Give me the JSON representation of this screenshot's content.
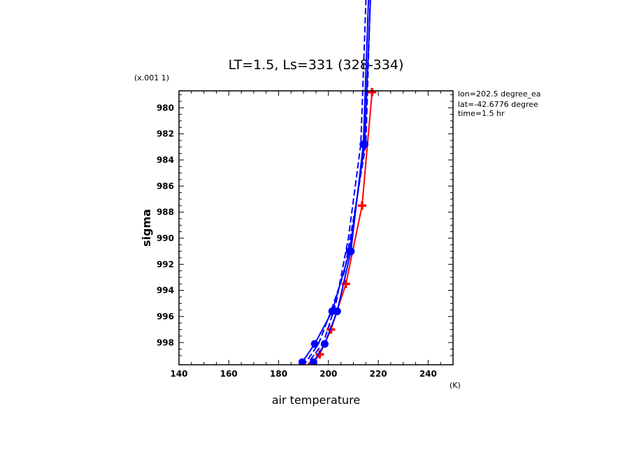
{
  "chart_data": {
    "type": "line",
    "title": "LT=1.5, Ls=331 (328-334)",
    "scale_label": "(x.001 1)",
    "xlabel": "air temperature",
    "xunit": "(K)",
    "ylabel": "sigma",
    "xlim": [
      140,
      250
    ],
    "ylim": [
      999.7,
      978.7
    ],
    "x_ticks": [
      140,
      160,
      180,
      200,
      220,
      240
    ],
    "y_ticks": [
      980,
      982,
      984,
      986,
      988,
      990,
      992,
      994,
      996,
      998
    ],
    "y_tick_labels": [
      "980",
      "982",
      "984",
      "986",
      "988",
      "990",
      "992",
      "994",
      "996",
      "998"
    ],
    "info": [
      "lon=202.5 degree_ea",
      "lat=-42.6776 degree",
      "time=1.5 hr"
    ],
    "colors": {
      "red": "#ff0000",
      "blue": "#0000ff"
    },
    "series": [
      {
        "color": "#ff0000",
        "marker": "plus",
        "style": "solid",
        "points": [
          [
            217.5,
            978.8
          ],
          [
            213.5,
            987.5
          ],
          [
            207.0,
            993.5
          ],
          [
            201.0,
            997.0
          ],
          [
            196.5,
            998.9
          ],
          [
            193.5,
            999.6
          ]
        ]
      },
      {
        "color": "#0000ff",
        "marker": "circle",
        "style": "solid",
        "points": [
          [
            218.5,
            964.0
          ],
          [
            214.5,
            982.8
          ],
          [
            208.5,
            991.0
          ],
          [
            201.5,
            995.6
          ],
          [
            194.5,
            998.1
          ],
          [
            189.5,
            999.5
          ]
        ]
      },
      {
        "color": "#0000ff",
        "marker": "circle",
        "style": "solid",
        "points": [
          [
            217.5,
            964.0
          ],
          [
            214.0,
            982.8
          ],
          [
            209.0,
            991.0
          ],
          [
            203.5,
            995.6
          ],
          [
            198.5,
            998.1
          ],
          [
            194.0,
            999.5
          ]
        ]
      },
      {
        "color": "#0000ff",
        "marker": "none",
        "style": "dashed",
        "points": [
          [
            218.0,
            964.0
          ],
          [
            215.0,
            982.8
          ],
          [
            210.5,
            988.0
          ],
          [
            206.5,
            992.5
          ],
          [
            201.0,
            995.6
          ],
          [
            196.0,
            998.1
          ],
          [
            191.0,
            999.5
          ]
        ]
      },
      {
        "color": "#0000ff",
        "marker": "none",
        "style": "dashed",
        "points": [
          [
            216.5,
            964.0
          ],
          [
            213.0,
            982.8
          ],
          [
            208.0,
            990.0
          ],
          [
            203.0,
            995.0
          ],
          [
            198.0,
            998.0
          ],
          [
            192.0,
            999.5
          ]
        ]
      }
    ]
  }
}
